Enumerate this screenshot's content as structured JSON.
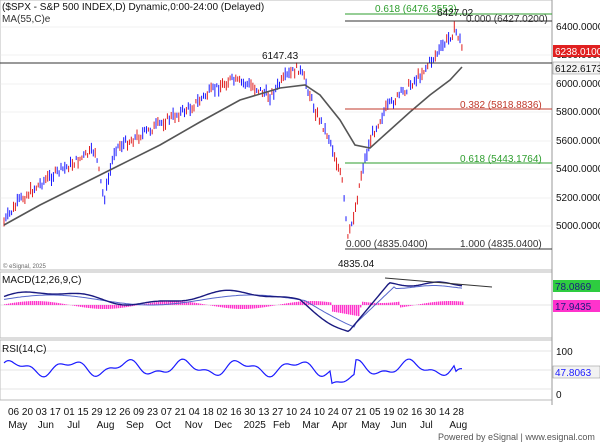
{
  "header": {
    "title": "($SPX - S&P 500 INDEX,D) Dynamic,0:00-24:00 (Delayed)",
    "ma_label": "MA(55,C)e",
    "copyright_small": "© eSignal, 2025"
  },
  "price_panel": {
    "axis_labels": [
      "6400.0000",
      "6200.0000",
      "6000.0000",
      "5800.0000",
      "5600.0000",
      "5400.0000",
      "5200.0000",
      "5000.0000"
    ],
    "last_price_tag": "6238.0100",
    "ma_value_tag": "6122.6173",
    "annotations": {
      "high_label": "6427.02",
      "prior_high_label": "6147.43",
      "low_label": "4835.04"
    },
    "fib_levels": [
      {
        "label": "0.618 (6476.3553)",
        "color": "#2e9e2e"
      },
      {
        "label": "0.000 (6427.0200)",
        "color": "#333333"
      },
      {
        "label": "0.382 (5818.8836)",
        "color": "#c0392b"
      },
      {
        "label": "0.618 (5443.1764)",
        "color": "#2e9e2e"
      },
      {
        "label": "0.000 (4835.0400)",
        "color": "#333333"
      },
      {
        "label": "1.000 (4835.0400)",
        "color": "#333333"
      }
    ]
  },
  "macd_panel": {
    "label": "MACD(12,26,9,C)",
    "value_macd": "78.0869",
    "value_signal": "17.9435"
  },
  "rsi_panel": {
    "label": "RSI(14,C)",
    "axis_labels": [
      "100",
      "50",
      "0"
    ],
    "value_tag": "47.8063"
  },
  "time_axis": {
    "dates": [
      "06",
      "20",
      "03",
      "17",
      "01",
      "15",
      "29",
      "12",
      "26",
      "09",
      "23",
      "07",
      "21",
      "04",
      "18",
      "02",
      "16",
      "30",
      "13",
      "27",
      "10",
      "24",
      "10",
      "24",
      "07",
      "21",
      "05",
      "19",
      "02",
      "16",
      "30",
      "14",
      "28"
    ],
    "months": [
      "May",
      "Jun",
      "Jul",
      "Aug",
      "Sep",
      "Oct",
      "Nov",
      "Dec",
      "2025",
      "Feb",
      "Mar",
      "Apr",
      "May",
      "Jun",
      "Jul",
      "Aug"
    ]
  },
  "footer": {
    "brand": "Powered by eSignal | www.esignal.com"
  },
  "colors": {
    "up_bar": "#1a1aff",
    "down_bar": "#e02020",
    "ma_line": "#555555",
    "macd_line": "#1a1a80",
    "signal_line": "#5566cc",
    "histogram": "#ff33cc",
    "rsi_line": "#1a1aff",
    "price_tag": "#e02020",
    "value_tag_green": "#2ecc40"
  }
}
